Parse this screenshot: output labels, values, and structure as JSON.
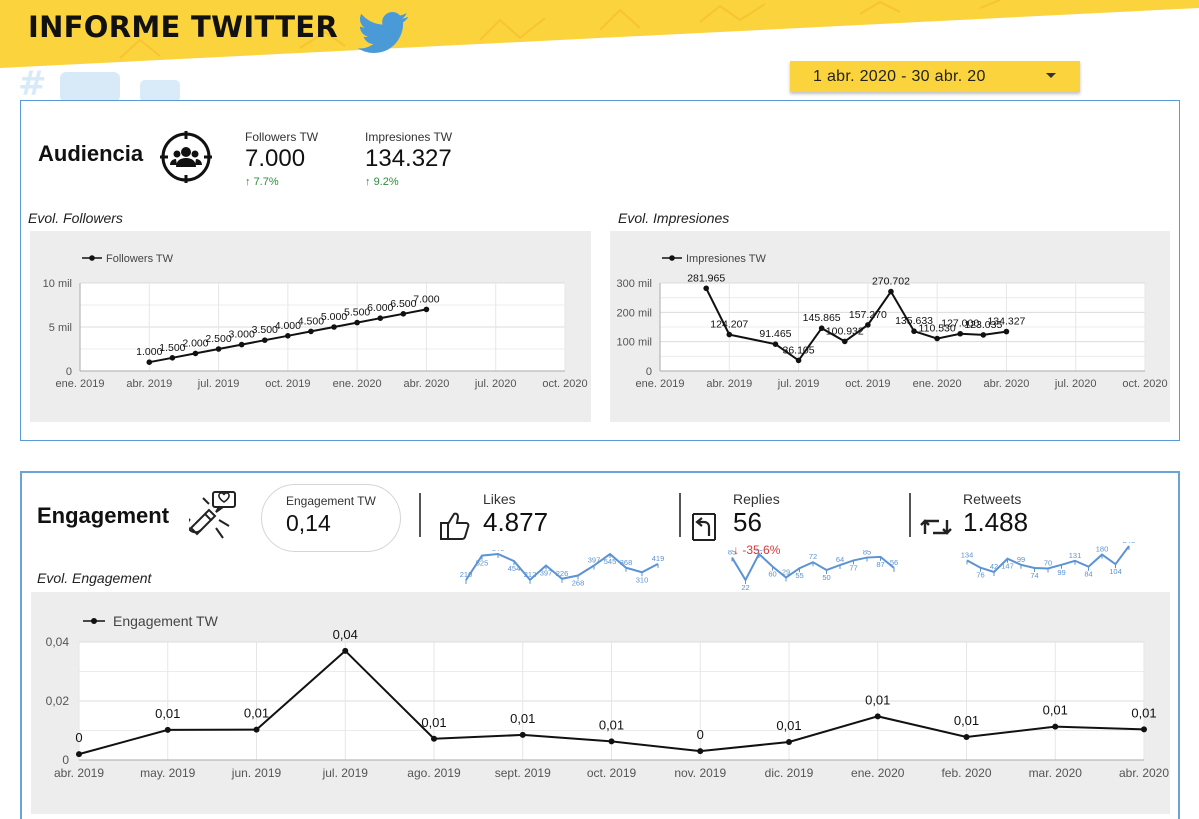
{
  "header": {
    "title": "INFORME TWITTER",
    "date_range": "1 abr. 2020 - 30 abr. 20"
  },
  "colors": {
    "banner_yellow": "#fbd33c",
    "panel_border": "#5b9bd5",
    "twitter_blue": "#4a9ad8",
    "sparkline": "#5b93d3",
    "positive": "#2e8b3e",
    "negative": "#d93838",
    "chart_bg": "#ededed"
  },
  "icons": {
    "brand": "twitter-bird-icon",
    "audiencia": "audience-target-icon",
    "engagement": "magnet-chat-icon",
    "likes": "thumbs-up-icon",
    "replies": "reply-arrow-icon",
    "retweets": "retweet-icon",
    "date_picker": "caret-down-icon"
  },
  "audiencia": {
    "title": "Audiencia",
    "followers": {
      "label": "Followers TW",
      "value": "7.000",
      "delta": "7.7%"
    },
    "impresiones": {
      "label": "Impresiones TW",
      "value": "134.327",
      "delta": "9.2%"
    }
  },
  "engagement": {
    "title": "Engagement",
    "kpi": {
      "label": "Engagement TW",
      "value": "0,14"
    },
    "likes": {
      "label": "Likes",
      "value": "4.877"
    },
    "replies": {
      "label": "Replies",
      "value": "56",
      "delta": "-35.6%"
    },
    "retweets": {
      "label": "Retweets",
      "value": "1.488"
    }
  },
  "chart_data": [
    {
      "id": "evol_followers",
      "type": "line",
      "title": "Evol. Followers",
      "legend": "top-left",
      "grid": true,
      "series": [
        {
          "name": "Followers TW",
          "x": [
            "2019-04",
            "2019-05",
            "2019-06",
            "2019-07",
            "2019-08",
            "2019-09",
            "2019-10",
            "2019-11",
            "2019-12",
            "2020-01",
            "2020-02",
            "2020-03",
            "2020-04"
          ],
          "values": [
            1000,
            1500,
            2000,
            2500,
            3000,
            3500,
            4000,
            4500,
            5000,
            5500,
            6000,
            6500,
            7000
          ],
          "labels": [
            "1.000",
            "1.500",
            "2.000",
            "2.500",
            "3.000",
            "3.500",
            "4.000",
            "4.500",
            "5.000",
            "5.500",
            "6.000",
            "6.500",
            "7.000"
          ]
        }
      ],
      "x_ticks": [
        "ene. 2019",
        "abr. 2019",
        "jul. 2019",
        "oct. 2019",
        "ene. 2020",
        "abr. 2020",
        "jul. 2020",
        "oct. 2020"
      ],
      "y_ticks": [
        "0",
        "5 mil",
        "10 mil"
      ],
      "xlim": [
        "2019-01",
        "2020-10"
      ],
      "ylim": [
        0,
        10000
      ]
    },
    {
      "id": "evol_impresiones",
      "type": "line",
      "title": "Evol. Impresiones",
      "legend": "top-left",
      "grid": true,
      "series": [
        {
          "name": "Impresiones TW",
          "x": [
            "2019-03",
            "2019-04",
            "2019-06",
            "2019-07",
            "2019-08",
            "2019-09",
            "2019-10",
            "2019-11",
            "2019-12",
            "2020-01",
            "2020-02",
            "2020-03",
            "2020-04"
          ],
          "values": [
            281965,
            124207,
            91465,
            36105,
            145865,
            100932,
            157270,
            270702,
            135633,
            110530,
            127000,
            123035,
            134327
          ],
          "labels": [
            "281.965",
            "124.207",
            "91.465",
            "36.105",
            "145.865",
            "100.932",
            "157.270",
            "270.702",
            "135.633",
            "110.530",
            "127.000",
            "123.035",
            "134.327"
          ]
        }
      ],
      "x_ticks": [
        "ene. 2019",
        "abr. 2019",
        "jul. 2019",
        "oct. 2019",
        "ene. 2020",
        "abr. 2020",
        "jul. 2020",
        "oct. 2020"
      ],
      "y_ticks": [
        "0",
        "100 mil",
        "200 mil",
        "300 mil"
      ],
      "xlim": [
        "2019-01",
        "2020-10"
      ],
      "ylim": [
        0,
        300000
      ]
    },
    {
      "id": "evol_engagement",
      "type": "line",
      "title": "Evol. Engagement",
      "legend": "top-left",
      "grid": true,
      "series": [
        {
          "name": "Engagement TW",
          "x": [
            "abr. 2019",
            "may. 2019",
            "jun. 2019",
            "jul. 2019",
            "ago. 2019",
            "sept. 2019",
            "oct. 2019",
            "nov. 2019",
            "dic. 2019",
            "ene. 2020",
            "feb. 2020",
            "mar. 2020",
            "abr. 2020"
          ],
          "values": [
            0.002,
            0.0102,
            0.0103,
            0.037,
            0.0072,
            0.0085,
            0.0063,
            0.003,
            0.0061,
            0.0148,
            0.0078,
            0.0113,
            0.0104
          ],
          "labels": [
            "0",
            "0,01",
            "0,01",
            "0,04",
            "0,01",
            "0,01",
            "0,01",
            "0",
            "0,01",
            "0,01",
            "0,01",
            "0,01",
            "0,01"
          ]
        }
      ],
      "y_ticks": [
        "0",
        "0,02",
        "0,04"
      ],
      "ylim": [
        0,
        0.04
      ]
    },
    {
      "id": "spark_likes",
      "type": "line",
      "series": [
        {
          "name": "Likes",
          "values": [
            210,
            525,
            546,
            454,
            212,
            397,
            226,
            268,
            397,
            545,
            368,
            310,
            419
          ]
        }
      ]
    },
    {
      "id": "spark_replies",
      "type": "line",
      "series": [
        {
          "name": "Replies",
          "values": [
            85,
            22,
            95,
            60,
            29,
            55,
            72,
            50,
            64,
            77,
            85,
            87,
            56
          ]
        }
      ]
    },
    {
      "id": "spark_retweets",
      "type": "line",
      "series": [
        {
          "name": "Retweets",
          "values": [
            134,
            76,
            42,
            147,
            99,
            74,
            70,
            99,
            131,
            84,
            180,
            104,
            248
          ]
        }
      ]
    }
  ]
}
